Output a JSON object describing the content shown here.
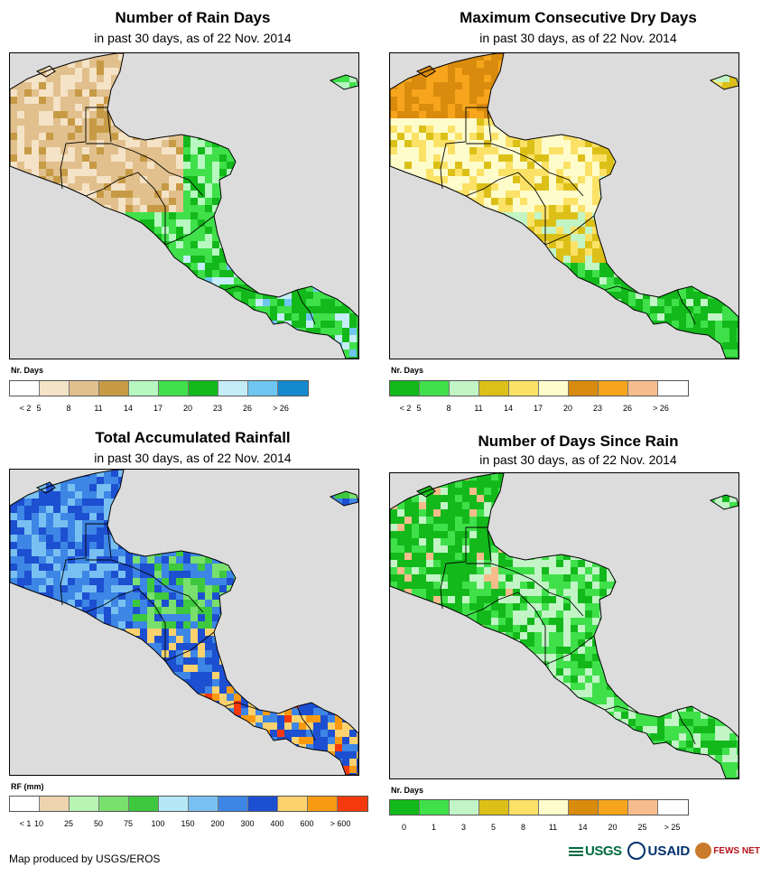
{
  "panels": {
    "rain_days": {
      "title": "Number of Rain Days",
      "subtitle": "in past 30 days, as of 22 Nov. 2014",
      "legend_title": "Nr. Days",
      "colors": [
        "#ffffff",
        "#f5e3c7",
        "#e1c08d",
        "#c79a45",
        "#b7f7c0",
        "#3fe04a",
        "#13b91b",
        "#c5edf7",
        "#6fc7f1",
        "#1589cf"
      ],
      "labels": [
        "< 2",
        "5",
        "8",
        "11",
        "14",
        "17",
        "20",
        "23",
        "26",
        "> 26"
      ]
    },
    "dry_days": {
      "title": "Maximum Consecutive Dry Days",
      "subtitle": "in past 30 days, as of 22 Nov. 2014",
      "legend_title": "Nr. Days",
      "colors": [
        "#13b91b",
        "#3fe04a",
        "#c2f4c6",
        "#dcc018",
        "#fbe266",
        "#fffccb",
        "#d98b0e",
        "#f6a51c",
        "#f7bc8c",
        "#ffffff"
      ],
      "labels": [
        "< 2",
        "5",
        "8",
        "11",
        "14",
        "17",
        "20",
        "23",
        "26",
        "> 26"
      ]
    },
    "rainfall": {
      "title": "Total Accumulated Rainfall",
      "subtitle": "in past 30 days, as of 22 Nov. 2014",
      "legend_title": "RF (mm)",
      "colors": [
        "#ffffff",
        "#ecd4ae",
        "#b8f5b4",
        "#79e06e",
        "#3ec83e",
        "#b5e8f7",
        "#79c0f2",
        "#3d86e5",
        "#1d4fd1",
        "#fcd26e",
        "#f89b12",
        "#f43a0c"
      ],
      "labels": [
        "< 1",
        "10",
        "25",
        "50",
        "75",
        "100",
        "150",
        "200",
        "300",
        "400",
        "600",
        "> 600"
      ]
    },
    "since_rain": {
      "title": "Number of Days Since Rain",
      "subtitle": "in past 30 days, as of 22 Nov. 2014",
      "legend_title": "Nr. Days",
      "colors": [
        "#13b91b",
        "#3fe04a",
        "#c2f4c6",
        "#dcc018",
        "#fbe266",
        "#fffccb",
        "#d98b0e",
        "#f6a51c",
        "#f7bc8c",
        "#ffffff"
      ],
      "labels": [
        "0",
        "1",
        "3",
        "5",
        "8",
        "11",
        "14",
        "20",
        "25",
        "> 25"
      ]
    }
  },
  "footer": {
    "credit": "Map produced by USGS/EROS",
    "logo_usgs": "USGS",
    "logo_usaid": "USAID",
    "logo_fews": "FEWS NET"
  }
}
